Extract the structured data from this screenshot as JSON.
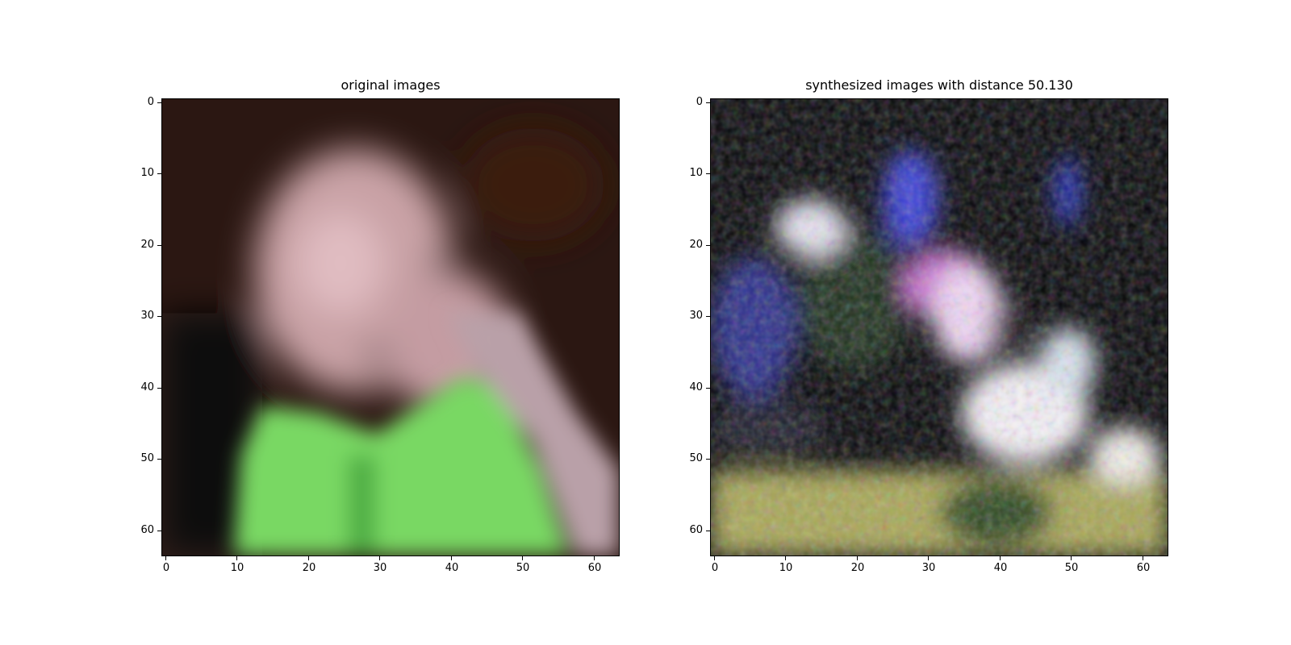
{
  "figure": {
    "panels": [
      {
        "id": "original",
        "title": "original images",
        "colors": {
          "background": "#2b1712",
          "skin": "#c9a2a6",
          "highlight": "#e0bcc1",
          "shirt": "#79d863",
          "shirt_shadow": "#4fae44",
          "dark": "#111010",
          "hand": "#b9a0a8"
        }
      },
      {
        "id": "synthesized",
        "title": "synthesized images with distance 50.130",
        "colors": {
          "background": "#050508",
          "blue": "#3b3fd6",
          "pink_white": "#f0d6f4",
          "white": "#f4f0f6",
          "olive": "#a8a656",
          "green_dark": "#2d4a24",
          "magenta": "#c96fd1"
        }
      }
    ],
    "y_ticks": [
      "0",
      "10",
      "20",
      "30",
      "40",
      "50",
      "60"
    ],
    "x_ticks": [
      "0",
      "10",
      "20",
      "30",
      "40",
      "50",
      "60"
    ],
    "axis_range": [
      0,
      64
    ]
  }
}
